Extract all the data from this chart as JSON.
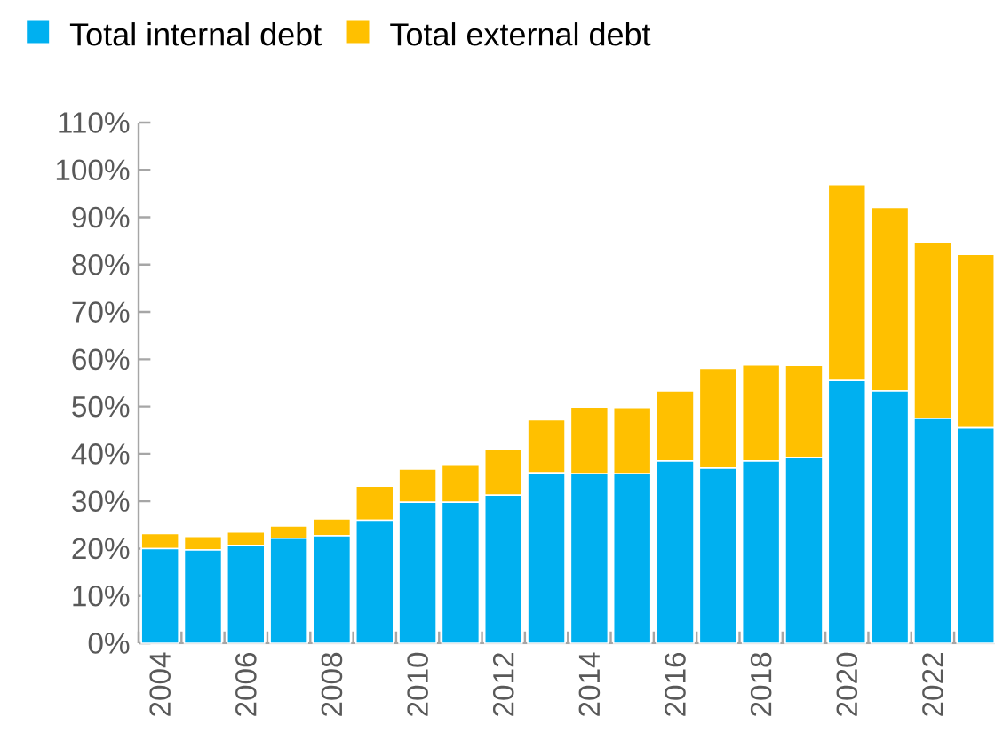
{
  "chart_data": {
    "type": "bar",
    "stacked": true,
    "legend": "top",
    "categories": [
      "2004",
      null,
      "2006",
      null,
      "2008",
      null,
      "2010",
      null,
      "2012",
      null,
      "2014",
      null,
      "2016",
      null,
      "2018",
      null,
      "2020",
      null,
      "2022",
      null
    ],
    "series": [
      {
        "name": "Total internal debt",
        "color": "#00b0f0",
        "values": [
          20,
          19.7,
          20.7,
          22.2,
          22.7,
          26,
          29.8,
          29.8,
          31.3,
          36,
          35.8,
          35.8,
          38.5,
          37,
          38.5,
          39.2,
          55.5,
          53.3,
          47.5,
          45.5
        ]
      },
      {
        "name": "Total external debt",
        "color": "#ffc000",
        "values": [
          3.2,
          2.9,
          2.8,
          2.6,
          3.6,
          7.2,
          7.0,
          8.0,
          9.6,
          11.2,
          14.1,
          14.0,
          14.8,
          21.1,
          20.3,
          19.5,
          41.4,
          38.8,
          37.3,
          36.7
        ]
      }
    ],
    "ylim": [
      0,
      110
    ],
    "yticks": [
      {
        "value": 0,
        "label": "0%"
      },
      {
        "value": 10,
        "label": "10%"
      },
      {
        "value": 20,
        "label": "20%"
      },
      {
        "value": 30,
        "label": "30%"
      },
      {
        "value": 40,
        "label": "40%"
      },
      {
        "value": 50,
        "label": "50%"
      },
      {
        "value": 60,
        "label": "60%"
      },
      {
        "value": 70,
        "label": "70%"
      },
      {
        "value": 80,
        "label": "80%"
      },
      {
        "value": 90,
        "label": "90%"
      },
      {
        "value": 100,
        "label": "100%"
      },
      {
        "value": 110,
        "label": "110%"
      }
    ]
  }
}
